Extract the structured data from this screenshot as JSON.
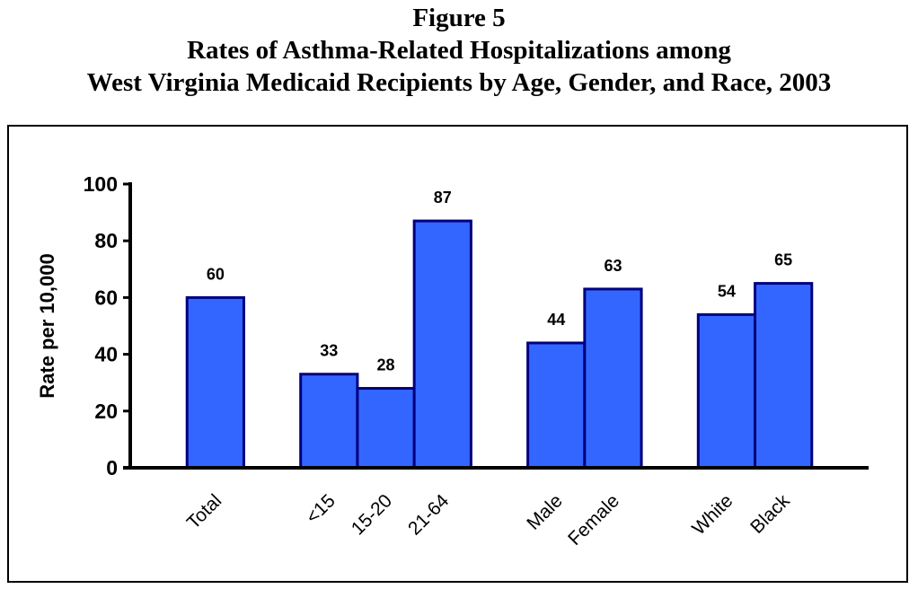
{
  "title_lines": [
    "Figure 5",
    "Rates of Asthma-Related Hospitalizations among",
    "West Virginia Medicaid Recipients by Age, Gender, and Race, 2003"
  ],
  "chart_data": {
    "type": "bar",
    "title": "Figure 5 Rates of Asthma-Related Hospitalizations among West Virginia Medicaid Recipients by Age, Gender, and Race, 2003",
    "xlabel": "",
    "ylabel": "Rate per 10,000",
    "ylim": [
      0,
      100
    ],
    "yticks": [
      0,
      20,
      40,
      60,
      80,
      100
    ],
    "categories": [
      "Total",
      "<15",
      "15-20",
      "21-64",
      "Male",
      "Female",
      "White",
      "Black"
    ],
    "groups": [
      1,
      3,
      4,
      5,
      7,
      8,
      10,
      11
    ],
    "slots": 13,
    "values": [
      60,
      33,
      28,
      87,
      44,
      63,
      54,
      65
    ],
    "grid": false,
    "colors": {
      "fill": "#3366FF",
      "stroke": "#000080"
    }
  }
}
